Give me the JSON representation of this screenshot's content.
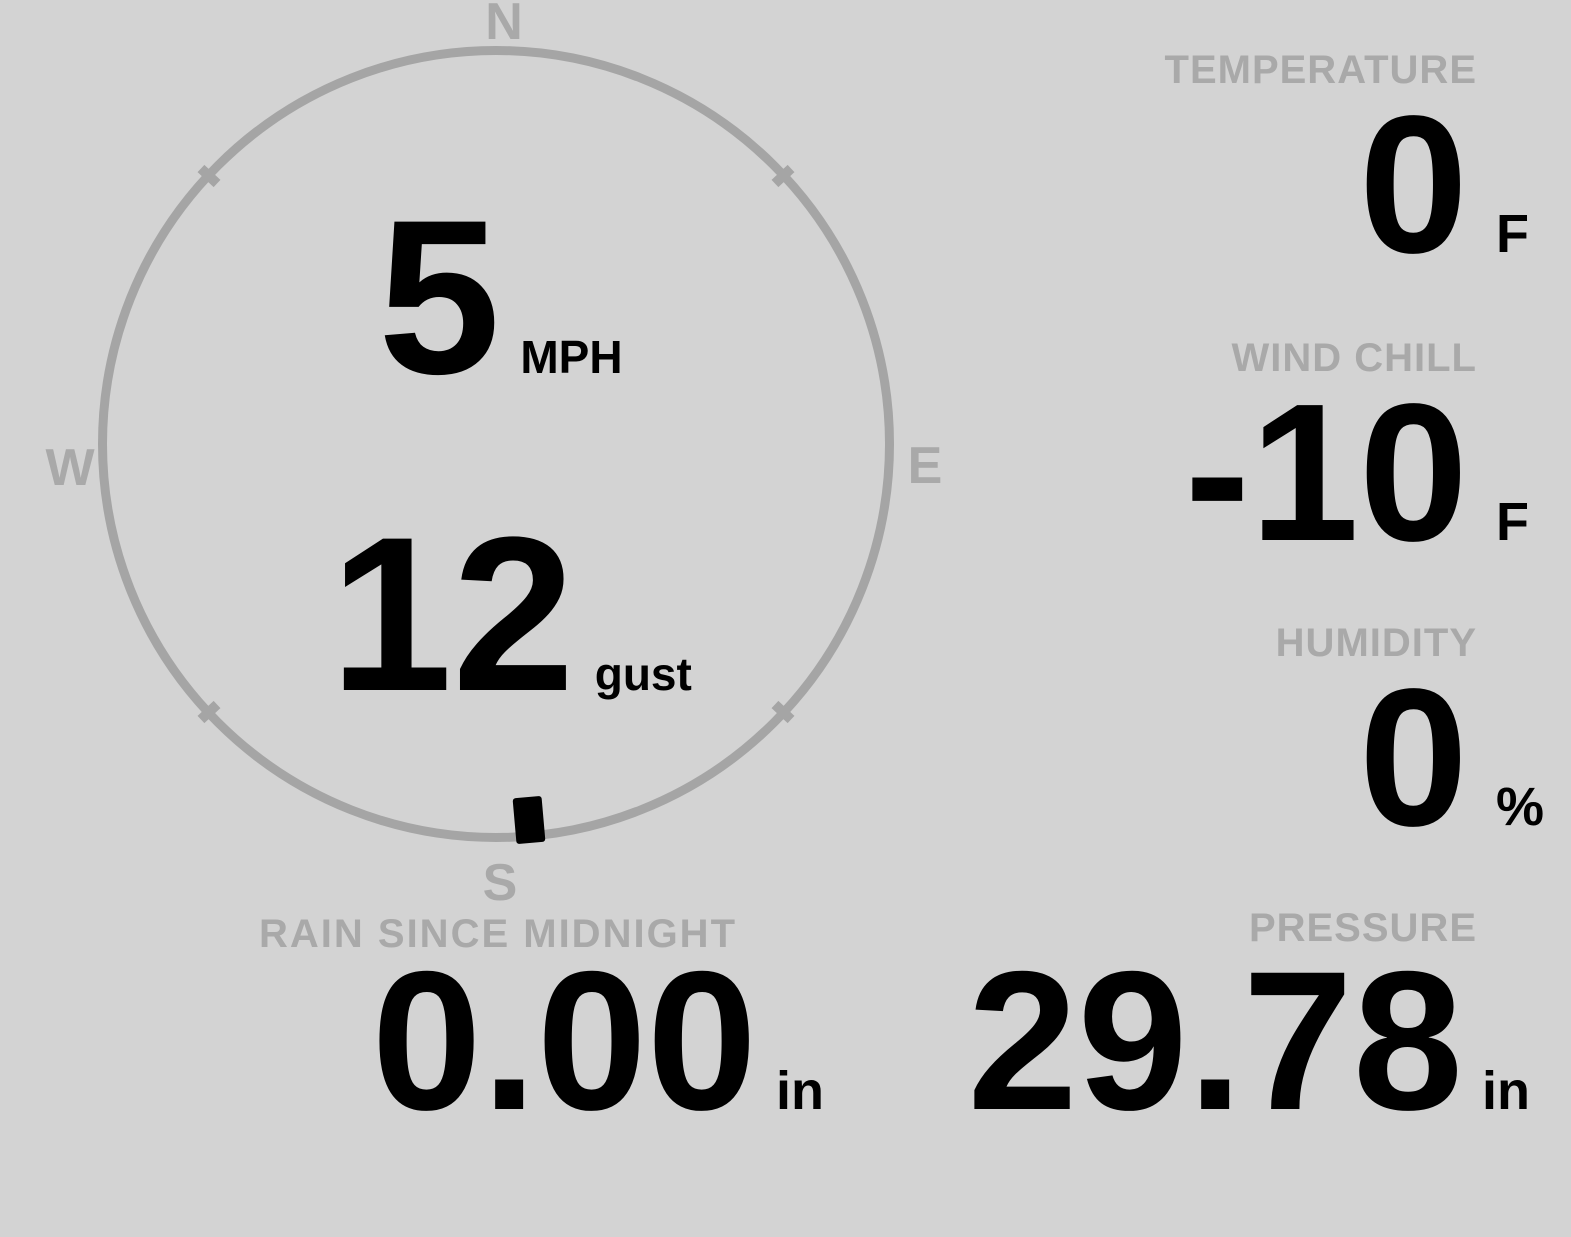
{
  "colors": {
    "background": "#d3d3d3",
    "muted_gray": "#a9a9a9",
    "ring_gray": "#a5a5a5",
    "value_black": "#000000"
  },
  "wind": {
    "compass": {
      "north": "N",
      "east": "E",
      "south": "S",
      "west": "W"
    },
    "speed": "5",
    "speed_unit": "MPH",
    "gust": "12",
    "gust_unit": "gust",
    "direction_deg": 175
  },
  "metrics": {
    "temperature": {
      "label": "TEMPERATURE",
      "value": "0",
      "unit": "F"
    },
    "wind_chill": {
      "label": "WIND CHILL",
      "value": "-10",
      "unit": "F"
    },
    "humidity": {
      "label": "HUMIDITY",
      "value": "0",
      "unit": "%"
    },
    "rain": {
      "label": "RAIN SINCE MIDNIGHT",
      "value": "0.00",
      "unit": "in"
    },
    "pressure": {
      "label": "PRESSURE",
      "value": "29.78",
      "unit": "in"
    }
  }
}
